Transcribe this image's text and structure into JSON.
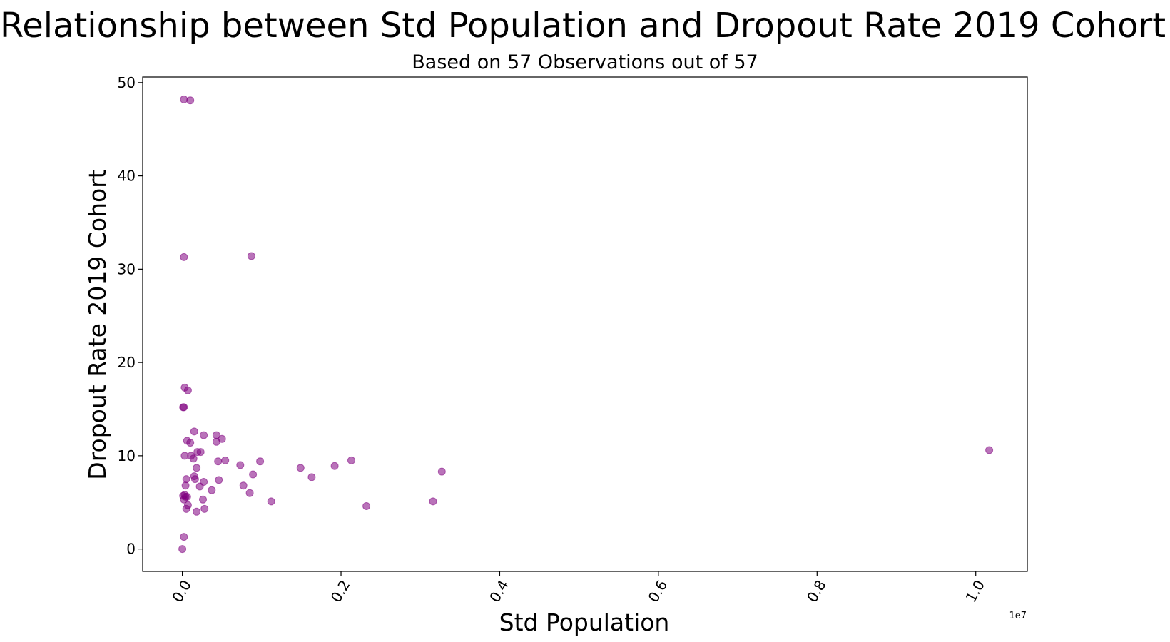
{
  "chart_data": {
    "type": "scatter",
    "title": "Relationship between Std Population and Dropout Rate 2019 Cohort",
    "subtitle": "Based on 57 Observations out of 57",
    "xlabel": "Std Population",
    "ylabel": "Dropout Rate 2019 Cohort",
    "x_offset_label": "1e7",
    "xlim": [
      -0.05,
      1.065
    ],
    "ylim": [
      -2.4,
      50.6
    ],
    "x_ticks": [
      0.0,
      0.2,
      0.4,
      0.6,
      0.8,
      1.0
    ],
    "x_tick_labels": [
      "0.0",
      "0.2",
      "0.4",
      "0.6",
      "0.8",
      "1.0"
    ],
    "y_ticks": [
      0,
      10,
      20,
      30,
      40,
      50
    ],
    "y_tick_labels": [
      "0",
      "10",
      "20",
      "30",
      "40",
      "50"
    ],
    "grid": false,
    "marker_color": "#800080",
    "marker_alpha": 0.55,
    "x_unit_note": "x values in units of 1e7",
    "points": [
      {
        "x": 0.002,
        "y": 48.2
      },
      {
        "x": 0.01,
        "y": 48.1
      },
      {
        "x": 0.002,
        "y": 31.3
      },
      {
        "x": 0.087,
        "y": 31.4
      },
      {
        "x": 0.003,
        "y": 17.3
      },
      {
        "x": 0.007,
        "y": 17.0
      },
      {
        "x": 0.001,
        "y": 15.2
      },
      {
        "x": 0.002,
        "y": 15.2
      },
      {
        "x": 0.015,
        "y": 12.6
      },
      {
        "x": 0.027,
        "y": 12.2
      },
      {
        "x": 0.043,
        "y": 12.2
      },
      {
        "x": 0.05,
        "y": 11.8
      },
      {
        "x": 0.006,
        "y": 11.6
      },
      {
        "x": 0.01,
        "y": 11.4
      },
      {
        "x": 0.043,
        "y": 11.5
      },
      {
        "x": 0.019,
        "y": 10.4
      },
      {
        "x": 0.023,
        "y": 10.4
      },
      {
        "x": 0.003,
        "y": 10.0
      },
      {
        "x": 0.011,
        "y": 10.0
      },
      {
        "x": 0.014,
        "y": 9.7
      },
      {
        "x": 0.054,
        "y": 9.5
      },
      {
        "x": 0.045,
        "y": 9.4
      },
      {
        "x": 0.098,
        "y": 9.4
      },
      {
        "x": 0.073,
        "y": 9.0
      },
      {
        "x": 0.018,
        "y": 8.7
      },
      {
        "x": 0.149,
        "y": 8.7
      },
      {
        "x": 0.192,
        "y": 8.9
      },
      {
        "x": 0.213,
        "y": 9.5
      },
      {
        "x": 0.327,
        "y": 8.3
      },
      {
        "x": 0.089,
        "y": 8.0
      },
      {
        "x": 0.163,
        "y": 7.7
      },
      {
        "x": 0.015,
        "y": 7.8
      },
      {
        "x": 0.016,
        "y": 7.5
      },
      {
        "x": 0.005,
        "y": 7.5
      },
      {
        "x": 0.046,
        "y": 7.4
      },
      {
        "x": 0.027,
        "y": 7.2
      },
      {
        "x": 0.004,
        "y": 6.8
      },
      {
        "x": 0.022,
        "y": 6.7
      },
      {
        "x": 0.077,
        "y": 6.8
      },
      {
        "x": 0.037,
        "y": 6.3
      },
      {
        "x": 0.085,
        "y": 6.0
      },
      {
        "x": 0.001,
        "y": 5.7
      },
      {
        "x": 0.004,
        "y": 5.6
      },
      {
        "x": 0.006,
        "y": 5.6
      },
      {
        "x": 0.002,
        "y": 5.3
      },
      {
        "x": 0.026,
        "y": 5.3
      },
      {
        "x": 0.112,
        "y": 5.1
      },
      {
        "x": 0.316,
        "y": 5.1
      },
      {
        "x": 0.007,
        "y": 4.7
      },
      {
        "x": 0.232,
        "y": 4.6
      },
      {
        "x": 0.005,
        "y": 4.3
      },
      {
        "x": 0.028,
        "y": 4.3
      },
      {
        "x": 0.018,
        "y": 4.0
      },
      {
        "x": 0.002,
        "y": 1.3
      },
      {
        "x": 0.0,
        "y": 0.0
      },
      {
        "x": 1.017,
        "y": 10.6
      },
      {
        "x": 0.003,
        "y": 5.8
      }
    ]
  }
}
